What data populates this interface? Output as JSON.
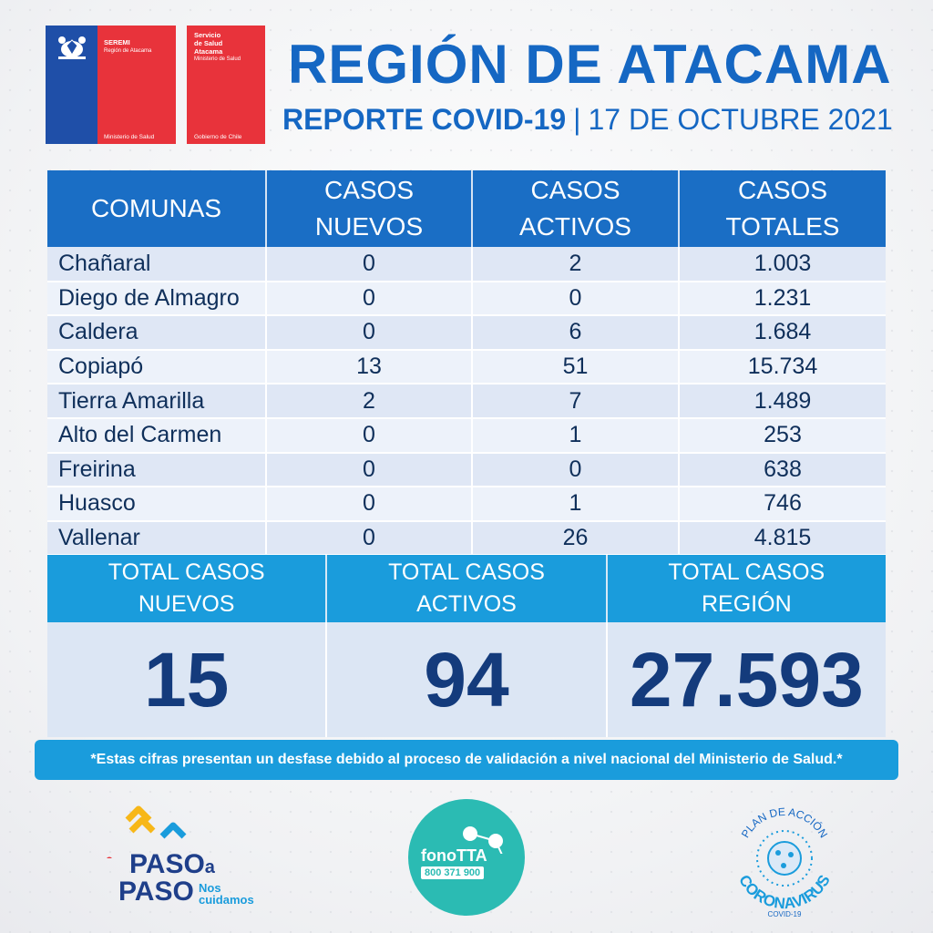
{
  "logos": {
    "seremi": {
      "title": "SEREMI",
      "subtitle": "Región de Atacama",
      "bottom": "Ministerio de Salud"
    },
    "servicio": {
      "line1": "Servicio",
      "line2": "de Salud",
      "line3": "Atacama",
      "small": "Ministerio de Salud",
      "bottom": "Gobierno de Chile"
    }
  },
  "header": {
    "title": "REGIÓN DE ATACAMA",
    "report": "REPORTE COVID-19",
    "separator": "|",
    "date": "17 DE OCTUBRE 2021"
  },
  "table": {
    "columns": [
      {
        "line1": "COMUNAS",
        "line2": ""
      },
      {
        "line1": "CASOS",
        "line2": "NUEVOS"
      },
      {
        "line1": "CASOS",
        "line2": "ACTIVOS"
      },
      {
        "line1": "CASOS",
        "line2": "TOTALES"
      }
    ],
    "rows": [
      [
        "Chañaral",
        "0",
        "2",
        "1.003"
      ],
      [
        "Diego de Almagro",
        "0",
        "0",
        "1.231"
      ],
      [
        "Caldera",
        "0",
        "6",
        "1.684"
      ],
      [
        "Copiapó",
        "13",
        "51",
        "15.734"
      ],
      [
        "Tierra Amarilla",
        "2",
        "7",
        "1.489"
      ],
      [
        "Alto del Carmen",
        "0",
        "1",
        "253"
      ],
      [
        "Freirina",
        "0",
        "0",
        "638"
      ],
      [
        "Huasco",
        "0",
        "1",
        "746"
      ],
      [
        "Vallenar",
        "0",
        "26",
        "4.815"
      ]
    ]
  },
  "totals": {
    "labels": [
      {
        "line1": "TOTAL CASOS",
        "line2": "NUEVOS"
      },
      {
        "line1": "TOTAL CASOS",
        "line2": "ACTIVOS"
      },
      {
        "line1": "TOTAL CASOS",
        "line2": "REGIÓN"
      }
    ],
    "values": [
      "15",
      "94",
      "27.593"
    ]
  },
  "note": "*Estas cifras presentan un desfase debido al proceso de validación a nivel nacional del Ministerio de Salud.*",
  "footer": {
    "paso": {
      "line1": "PASO",
      "a": "a",
      "line2": "PASO",
      "tag1": "Nos",
      "tag2": "cuidamos"
    },
    "fono": {
      "name": "fonoTTA",
      "number": "800 371 900"
    },
    "plan": {
      "top": "PLAN DE ACCIÓN",
      "main": "CORONAVIRUS",
      "bottom": "COVID-19"
    }
  },
  "colors": {
    "primary_blue": "#1567c3",
    "header_blue": "#1a6ec5",
    "totals_blue": "#1a9cdc",
    "value_navy": "#143b7c",
    "logo_red": "#e8333b",
    "logo_blue": "#1f4fa8",
    "fono_teal": "#2bbbb3"
  }
}
